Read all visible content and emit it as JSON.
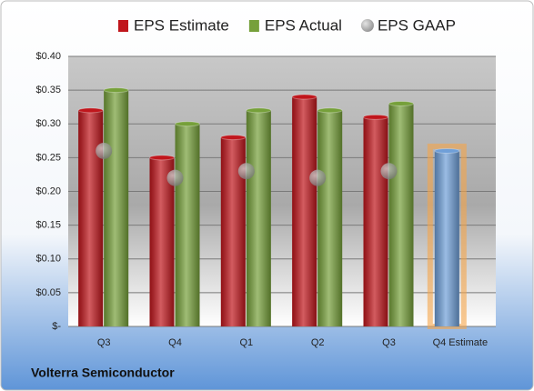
{
  "chart_data": {
    "type": "bar",
    "categories": [
      "Q3",
      "Q4",
      "Q1",
      "Q2",
      "Q3",
      "Q4 Estimate"
    ],
    "series": [
      {
        "name": "EPS Estimate",
        "color": "#c0161c",
        "highlight_color": "#6f9fd8",
        "values": [
          0.32,
          0.25,
          0.28,
          0.34,
          0.31,
          0.26
        ]
      },
      {
        "name": "EPS Actual",
        "color": "#76a03a",
        "values": [
          0.35,
          0.3,
          0.32,
          0.32,
          0.33,
          null
        ]
      },
      {
        "name": "EPS GAAP",
        "color": "#9a9a9a",
        "marker": "circle",
        "values": [
          0.26,
          0.22,
          0.23,
          0.22,
          0.23,
          null
        ]
      }
    ],
    "ylim": [
      0,
      0.4
    ],
    "yticks": [
      {
        "value": 0,
        "label": "$-"
      },
      {
        "value": 0.05,
        "label": "$0.05"
      },
      {
        "value": 0.1,
        "label": "$0.10"
      },
      {
        "value": 0.15,
        "label": "$0.15"
      },
      {
        "value": 0.2,
        "label": "$0.20"
      },
      {
        "value": 0.25,
        "label": "$0.25"
      },
      {
        "value": 0.3,
        "label": "$0.30"
      },
      {
        "value": 0.35,
        "label": "$0.35"
      },
      {
        "value": 0.4,
        "label": "$0.40"
      }
    ],
    "grid": true,
    "footer": "Volterra Semiconductor"
  }
}
